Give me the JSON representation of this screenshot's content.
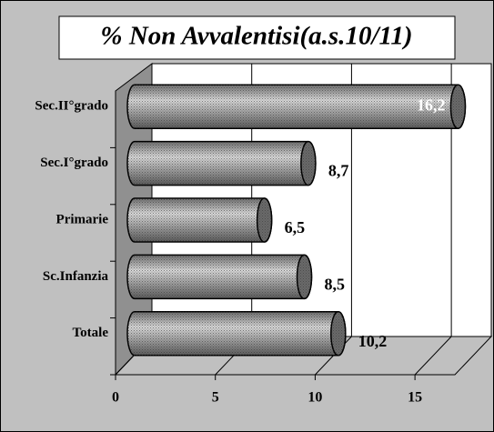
{
  "chart_data": {
    "type": "bar",
    "orientation": "horizontal",
    "title": "% Non Avvalentisi(a.s.10/11)",
    "categories": [
      "Totale",
      "Sc.Infanzia",
      "Primarie",
      "Sec.I°grado",
      "Sec.II°grado"
    ],
    "values": [
      10.2,
      8.5,
      6.5,
      8.7,
      16.2
    ],
    "value_labels": [
      "10,2",
      "8,5",
      "6,5",
      "8,7",
      "16,2"
    ],
    "color": "#9a9a9a",
    "xlim": [
      0,
      17
    ],
    "xticks": [
      0,
      5,
      10,
      15
    ],
    "grid": true
  }
}
